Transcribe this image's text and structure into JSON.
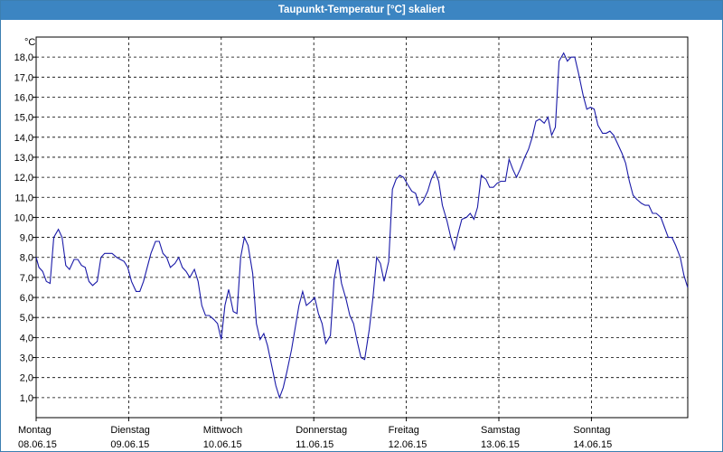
{
  "window": {
    "title": "Taupunkt-Temperatur [°C] skaliert"
  },
  "colors": {
    "line": "#1a1aa8",
    "titlebar": "#3c85c2",
    "grid": "#000000"
  },
  "chart_data": {
    "type": "line",
    "title": "Taupunkt-Temperatur [°C] skaliert",
    "ylabel": "°C",
    "ylim": [
      0,
      19
    ],
    "yticks": [
      "1,0",
      "2,0",
      "3,0",
      "4,0",
      "5,0",
      "6,0",
      "7,0",
      "8,0",
      "9,0",
      "10,0",
      "11,0",
      "12,0",
      "13,0",
      "14,0",
      "15,0",
      "16,0",
      "17,0",
      "18,0"
    ],
    "xlim": [
      0,
      7.1
    ],
    "xticks": [
      {
        "day": "Montag",
        "date": "08.06.15"
      },
      {
        "day": "Dienstag",
        "date": "09.06.15"
      },
      {
        "day": "Mittwoch",
        "date": "10.06.15"
      },
      {
        "day": "Donnerstag",
        "date": "11.06.15"
      },
      {
        "day": "Freitag",
        "date": "12.06.15"
      },
      {
        "day": "Samstag",
        "date": "13.06.15"
      },
      {
        "day": "Sonntag",
        "date": "14.06.15"
      }
    ],
    "grid": true,
    "series": [
      {
        "points": [
          [
            0.0,
            8.0
          ],
          [
            0.03,
            7.5
          ],
          [
            0.07,
            7.3
          ],
          [
            0.11,
            6.8
          ],
          [
            0.15,
            6.7
          ],
          [
            0.19,
            9.0
          ],
          [
            0.24,
            9.4
          ],
          [
            0.28,
            9.0
          ],
          [
            0.32,
            7.6
          ],
          [
            0.36,
            7.4
          ],
          [
            0.41,
            7.9
          ],
          [
            0.45,
            7.9
          ],
          [
            0.49,
            7.6
          ],
          [
            0.53,
            7.5
          ],
          [
            0.57,
            6.8
          ],
          [
            0.61,
            6.6
          ],
          [
            0.66,
            6.8
          ],
          [
            0.7,
            8.0
          ],
          [
            0.74,
            8.2
          ],
          [
            0.78,
            8.2
          ],
          [
            0.82,
            8.2
          ],
          [
            0.87,
            8.0
          ],
          [
            0.91,
            7.9
          ],
          [
            0.95,
            7.8
          ],
          [
            0.99,
            7.5
          ],
          [
            1.03,
            6.8
          ],
          [
            1.08,
            6.3
          ],
          [
            1.12,
            6.3
          ],
          [
            1.16,
            6.8
          ],
          [
            1.2,
            7.5
          ],
          [
            1.24,
            8.2
          ],
          [
            1.29,
            8.8
          ],
          [
            1.33,
            8.8
          ],
          [
            1.37,
            8.2
          ],
          [
            1.41,
            8.0
          ],
          [
            1.45,
            7.5
          ],
          [
            1.5,
            7.7
          ],
          [
            1.54,
            8.0
          ],
          [
            1.58,
            7.5
          ],
          [
            1.62,
            7.3
          ],
          [
            1.66,
            7.0
          ],
          [
            1.71,
            7.4
          ],
          [
            1.75,
            6.8
          ],
          [
            1.79,
            5.6
          ],
          [
            1.83,
            5.1
          ],
          [
            1.87,
            5.1
          ],
          [
            1.92,
            4.9
          ],
          [
            1.96,
            4.7
          ],
          [
            2.0,
            3.9
          ],
          [
            2.04,
            5.6
          ],
          [
            2.08,
            6.4
          ],
          [
            2.13,
            5.3
          ],
          [
            2.17,
            5.2
          ],
          [
            2.21,
            8.0
          ],
          [
            2.25,
            9.0
          ],
          [
            2.29,
            8.6
          ],
          [
            2.34,
            7.2
          ],
          [
            2.38,
            4.7
          ],
          [
            2.42,
            3.9
          ],
          [
            2.46,
            4.2
          ],
          [
            2.5,
            3.6
          ],
          [
            2.55,
            2.5
          ],
          [
            2.59,
            1.6
          ],
          [
            2.63,
            1.0
          ],
          [
            2.67,
            1.5
          ],
          [
            2.71,
            2.3
          ],
          [
            2.76,
            3.4
          ],
          [
            2.8,
            4.5
          ],
          [
            2.84,
            5.6
          ],
          [
            2.88,
            6.3
          ],
          [
            2.92,
            5.6
          ],
          [
            2.97,
            5.8
          ],
          [
            3.01,
            6.0
          ],
          [
            3.05,
            5.2
          ],
          [
            3.09,
            4.7
          ],
          [
            3.13,
            3.7
          ],
          [
            3.18,
            4.1
          ],
          [
            3.22,
            6.9
          ],
          [
            3.26,
            7.9
          ],
          [
            3.3,
            6.7
          ],
          [
            3.35,
            5.9
          ],
          [
            3.39,
            5.1
          ],
          [
            3.43,
            4.7
          ],
          [
            3.47,
            3.8
          ],
          [
            3.51,
            3.0
          ],
          [
            3.55,
            2.9
          ],
          [
            3.6,
            4.4
          ],
          [
            3.64,
            6.0
          ],
          [
            3.68,
            8.0
          ],
          [
            3.72,
            7.7
          ],
          [
            3.76,
            6.8
          ],
          [
            3.81,
            7.8
          ],
          [
            3.85,
            11.4
          ],
          [
            3.89,
            11.9
          ],
          [
            3.93,
            12.1
          ],
          [
            3.97,
            12.0
          ],
          [
            4.02,
            11.6
          ],
          [
            4.06,
            11.3
          ],
          [
            4.1,
            11.2
          ],
          [
            4.14,
            10.6
          ],
          [
            4.18,
            10.8
          ],
          [
            4.23,
            11.3
          ],
          [
            4.27,
            11.9
          ],
          [
            4.31,
            12.3
          ],
          [
            4.35,
            11.8
          ],
          [
            4.39,
            10.6
          ],
          [
            4.44,
            9.8
          ],
          [
            4.48,
            9.0
          ],
          [
            4.52,
            8.4
          ],
          [
            4.56,
            9.2
          ],
          [
            4.6,
            9.9
          ],
          [
            4.65,
            10.0
          ],
          [
            4.69,
            10.2
          ],
          [
            4.73,
            9.9
          ],
          [
            4.77,
            10.5
          ],
          [
            4.81,
            12.1
          ],
          [
            4.86,
            11.9
          ],
          [
            4.9,
            11.5
          ],
          [
            4.94,
            11.5
          ],
          [
            4.98,
            11.7
          ],
          [
            5.02,
            11.8
          ],
          [
            5.07,
            11.8
          ],
          [
            5.11,
            12.9
          ],
          [
            5.15,
            12.4
          ],
          [
            5.19,
            12.0
          ],
          [
            5.23,
            12.4
          ],
          [
            5.28,
            13.0
          ],
          [
            5.32,
            13.4
          ],
          [
            5.36,
            14.0
          ],
          [
            5.4,
            14.8
          ],
          [
            5.44,
            14.9
          ],
          [
            5.49,
            14.7
          ],
          [
            5.53,
            15.0
          ],
          [
            5.57,
            14.1
          ],
          [
            5.61,
            14.5
          ],
          [
            5.65,
            17.8
          ],
          [
            5.7,
            18.2
          ],
          [
            5.74,
            17.8
          ],
          [
            5.78,
            18.0
          ],
          [
            5.82,
            18.0
          ],
          [
            5.86,
            17.2
          ],
          [
            5.91,
            16.1
          ],
          [
            5.95,
            15.4
          ],
          [
            5.99,
            15.5
          ],
          [
            6.03,
            15.4
          ],
          [
            6.07,
            14.6
          ],
          [
            6.12,
            14.2
          ],
          [
            6.16,
            14.2
          ],
          [
            6.2,
            14.3
          ],
          [
            6.24,
            14.1
          ],
          [
            6.28,
            13.7
          ],
          [
            6.33,
            13.2
          ],
          [
            6.37,
            12.7
          ],
          [
            6.41,
            11.8
          ],
          [
            6.45,
            11.1
          ],
          [
            6.49,
            10.9
          ],
          [
            6.54,
            10.7
          ],
          [
            6.58,
            10.6
          ],
          [
            6.62,
            10.6
          ],
          [
            6.66,
            10.2
          ],
          [
            6.7,
            10.2
          ],
          [
            6.75,
            10.0
          ],
          [
            6.79,
            9.5
          ],
          [
            6.83,
            9.0
          ],
          [
            6.87,
            9.0
          ],
          [
            6.91,
            8.6
          ],
          [
            6.96,
            8.0
          ],
          [
            7.0,
            7.1
          ],
          [
            7.04,
            6.5
          ]
        ]
      }
    ]
  }
}
